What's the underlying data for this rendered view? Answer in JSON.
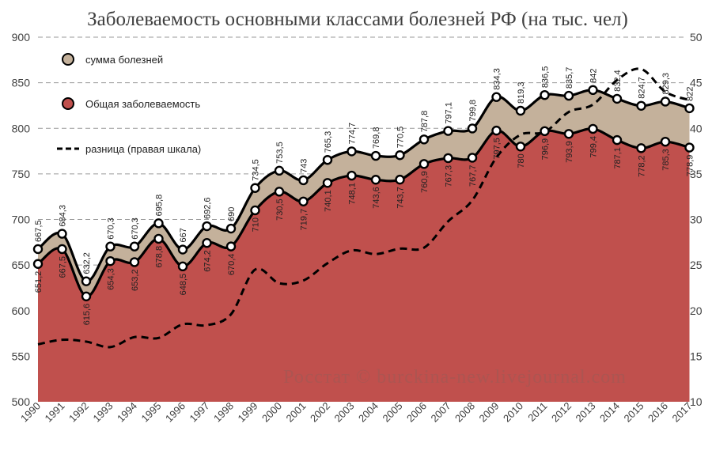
{
  "chart_data": {
    "type": "area",
    "title": "Заболеваемость основными классами болезней РФ (на тыс. чел)",
    "watermark": "Росстат © burckina-new.livejournal.com",
    "categories": [
      "1990",
      "1991",
      "1992",
      "1993",
      "1994",
      "1995",
      "1996",
      "1997",
      "1998",
      "1999",
      "2000",
      "2001",
      "2002",
      "2003",
      "2004",
      "2005",
      "2006",
      "2007",
      "2008",
      "2009",
      "2010",
      "2011",
      "2012",
      "2013",
      "2014",
      "2015",
      "2016",
      "2017"
    ],
    "y_left": {
      "min": 500,
      "max": 900,
      "step": 50,
      "ticks": [
        "500",
        "550",
        "600",
        "650",
        "700",
        "750",
        "800",
        "850",
        "900"
      ]
    },
    "y_right": {
      "min": 10,
      "max": 50,
      "step": 5,
      "ticks": [
        "10",
        "15",
        "20",
        "25",
        "30",
        "35",
        "40",
        "45",
        "50"
      ]
    },
    "grid": true,
    "legend_position": "top-left",
    "colors": {
      "total": "#c0504d",
      "sum": "#c4b19b",
      "line": "#000000",
      "marker_fill": "#ffffff",
      "grid": "#9a9a9a",
      "text": "#404040"
    },
    "series": [
      {
        "key": "sum",
        "name": "сумма болезней",
        "values": [
          667.5,
          684.3,
          632.2,
          670.3,
          670.3,
          695.8,
          667,
          692.6,
          690,
          734.5,
          753.5,
          743,
          765.3,
          774.7,
          769.8,
          770.5,
          787.8,
          797.1,
          799.8,
          834.3,
          819.3,
          836.5,
          835.7,
          842,
          832.4,
          824.7,
          829.3,
          822
        ],
        "labels": [
          "667,5",
          "684,3",
          "632,2",
          "670,3",
          "670,3",
          "695,8",
          "667",
          "692,6",
          "690",
          "734,5",
          "753,5",
          "743",
          "765,3",
          "774,7",
          "769,8",
          "770,5",
          "787,8",
          "797,1",
          "799,8",
          "834,3",
          "819,3",
          "836,5",
          "835,7",
          "842",
          "832,4",
          "824,7",
          "829,3",
          "822"
        ]
      },
      {
        "key": "total",
        "name": "Общая заболеваемость",
        "values": [
          651.2,
          667.5,
          615.6,
          654.3,
          653.2,
          678.8,
          648.5,
          674.2,
          670.4,
          710,
          730.5,
          719.7,
          740.1,
          748.1,
          743.6,
          743.7,
          760.9,
          767.3,
          767.7,
          797.5,
          780,
          796.9,
          793.9,
          799.4,
          787.1,
          778.2,
          785.3,
          778.9
        ],
        "labels": [
          "651,2",
          "667,5",
          "615,6",
          "654,3",
          "653,2",
          "678,8",
          "648,5",
          "674,2",
          "670,4",
          "710",
          "730,5",
          "719,7",
          "740,1",
          "748,1",
          "743,6",
          "743,7",
          "760,9",
          "767,3",
          "767,7",
          "797,5",
          "780",
          "796,9",
          "793,9",
          "799,4",
          "787,1",
          "778,2",
          "785,3",
          "778,9"
        ]
      },
      {
        "key": "diff",
        "name": "разница (правая шкала)",
        "axis": "right",
        "values": [
          16.3,
          16.8,
          16.6,
          16.0,
          17.1,
          17.0,
          18.5,
          18.4,
          19.6,
          24.5,
          23.0,
          23.3,
          25.2,
          26.6,
          26.2,
          26.8,
          26.9,
          29.8,
          32.1,
          36.8,
          39.3,
          39.6,
          41.8,
          42.6,
          45.3,
          46.5,
          44.0,
          43.1
        ]
      }
    ]
  }
}
